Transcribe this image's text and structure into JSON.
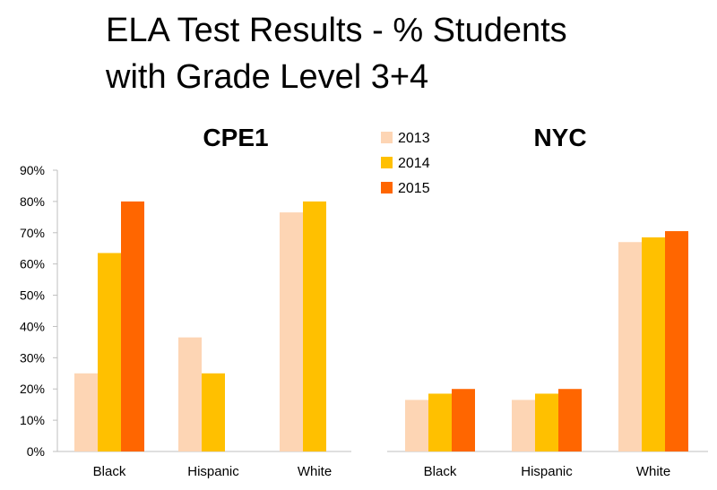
{
  "slide": {
    "title_line1": "ELA Test Results - % Students",
    "title_line2": "with Grade Level 3+4"
  },
  "colors": {
    "2013": "#FDD5B4",
    "2014": "#FFC000",
    "2015": "#FF6600",
    "axis": "#BFBFBF"
  },
  "legend": [
    "2013",
    "2014",
    "2015"
  ],
  "chart_data": [
    {
      "type": "bar",
      "title": "CPE1",
      "categories": [
        "Black",
        "Hispanic",
        "White"
      ],
      "series": [
        {
          "name": "2013",
          "values": [
            25,
            36.5,
            76.5
          ]
        },
        {
          "name": "2014",
          "values": [
            63.5,
            25,
            80
          ]
        },
        {
          "name": "2015",
          "values": [
            80,
            null,
            null
          ]
        }
      ],
      "ylim": [
        0,
        90
      ],
      "yticks": [
        "0%",
        "10%",
        "20%",
        "30%",
        "40%",
        "50%",
        "60%",
        "70%",
        "80%",
        "90%"
      ],
      "legend_position": "right"
    },
    {
      "type": "bar",
      "title": "NYC",
      "categories": [
        "Black",
        "Hispanic",
        "White"
      ],
      "series": [
        {
          "name": "2013",
          "values": [
            16.5,
            16.5,
            67
          ]
        },
        {
          "name": "2014",
          "values": [
            18.5,
            18.5,
            68.5
          ]
        },
        {
          "name": "2015",
          "values": [
            20,
            20,
            70.5
          ]
        }
      ],
      "ylim": [
        0,
        90
      ],
      "legend_position": "left"
    }
  ]
}
